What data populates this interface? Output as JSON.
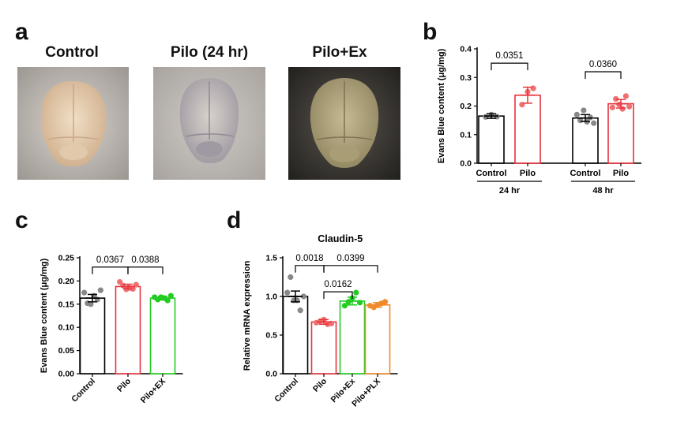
{
  "panels": {
    "a": "a",
    "b": "b",
    "c": "c",
    "d": "d"
  },
  "photos": [
    {
      "title": "Control",
      "tint": "#e8d2b8"
    },
    {
      "title": "Pilo (24 hr)",
      "tint": "#cfc7bf"
    },
    {
      "title": "Pilo+Ex",
      "tint": "#b9ae82"
    }
  ],
  "colors": {
    "control": "#000000",
    "pilo": "#e8323c",
    "ex": "#22cc22",
    "plx": "#f08a2a"
  },
  "chart_data": [
    {
      "id": "b",
      "type": "bar",
      "ylabel": "Evans  Blue content (μg/mg)",
      "ylim": [
        0,
        0.4
      ],
      "yticks": [
        "0.0",
        "0.1",
        "0.2",
        "0.3",
        "0.4"
      ],
      "categories": [
        "Control",
        "Pilo",
        "Control",
        "Pilo"
      ],
      "groups": [
        {
          "label": "24 hr",
          "indices": [
            0,
            1
          ]
        },
        {
          "label": "48 hr",
          "indices": [
            2,
            3
          ]
        }
      ],
      "values": [
        0.165,
        0.238,
        0.158,
        0.208
      ],
      "errors": [
        0.008,
        0.028,
        0.012,
        0.015
      ],
      "points": [
        [
          0.162,
          0.17,
          0.163
        ],
        [
          0.205,
          0.25,
          0.262
        ],
        [
          0.17,
          0.15,
          0.185,
          0.145,
          0.16,
          0.14
        ],
        [
          0.195,
          0.225,
          0.205,
          0.19,
          0.235,
          0.198
        ]
      ],
      "colors": [
        "#000000",
        "#e8323c",
        "#000000",
        "#e8323c"
      ],
      "pointColors": [
        "#888888",
        "#f07070",
        "#888888",
        "#f07070"
      ],
      "comparisons": [
        {
          "from": 0,
          "to": 1,
          "label": "0.0351",
          "y": 0.35
        },
        {
          "from": 2,
          "to": 3,
          "label": "0.0360",
          "y": 0.32
        }
      ]
    },
    {
      "id": "c",
      "type": "bar",
      "ylabel": "Evans  Blue content (μg/mg)",
      "ylim": [
        0,
        0.25
      ],
      "yticks": [
        "0.00",
        "0.05",
        "0.10",
        "0.15",
        "0.20",
        "0.25"
      ],
      "categories": [
        "Control",
        "Pilo",
        "Pilo+EX"
      ],
      "values": [
        0.163,
        0.188,
        0.163
      ],
      "errors": [
        0.008,
        0.005,
        0.004
      ],
      "points": [
        [
          0.175,
          0.152,
          0.15,
          0.168,
          0.16,
          0.18
        ],
        [
          0.198,
          0.19,
          0.182,
          0.185,
          0.183,
          0.192
        ],
        [
          0.165,
          0.16,
          0.165,
          0.163,
          0.158,
          0.168
        ]
      ],
      "colors": [
        "#000000",
        "#e8323c",
        "#22cc22"
      ],
      "pointColors": [
        "#888888",
        "#f07070",
        "#22cc22"
      ],
      "comparisons": [
        {
          "from": 0,
          "to": 1,
          "label": "0.0367",
          "y": 0.23
        },
        {
          "from": 1,
          "to": 2,
          "label": "0.0388",
          "y": 0.23
        }
      ]
    },
    {
      "id": "d",
      "type": "bar",
      "title": "Claudin-5",
      "ylabel": "Relative mRNA expression",
      "ylim": [
        0,
        1.5
      ],
      "yticks": [
        "0.0",
        "0.5",
        "1.0",
        "1.5"
      ],
      "categories": [
        "Control",
        "Pilo",
        "Pilo+Ex",
        "Pilo+PLX"
      ],
      "values": [
        1.0,
        0.67,
        0.94,
        0.89
      ],
      "errors": [
        0.07,
        0.03,
        0.05,
        0.03
      ],
      "points": [
        [
          1.05,
          1.25,
          0.95,
          0.95,
          0.82,
          1.0
        ],
        [
          0.66,
          0.68,
          0.7,
          0.64,
          0.65
        ],
        [
          0.88,
          0.93,
          0.98,
          1.05,
          0.92
        ],
        [
          0.88,
          0.86,
          0.89,
          0.91,
          0.93
        ]
      ],
      "colors": [
        "#000000",
        "#e8323c",
        "#22cc22",
        "#f08a2a"
      ],
      "pointColors": [
        "#888888",
        "#f07070",
        "#22cc22",
        "#f08a2a"
      ],
      "comparisons": [
        {
          "from": 0,
          "to": 1,
          "label": "0.0018",
          "y": 1.4
        },
        {
          "from": 1,
          "to": 3,
          "label": "0.0399",
          "y": 1.4
        },
        {
          "from": 1,
          "to": 2,
          "label": "0.0162",
          "y": 1.06
        }
      ]
    }
  ]
}
